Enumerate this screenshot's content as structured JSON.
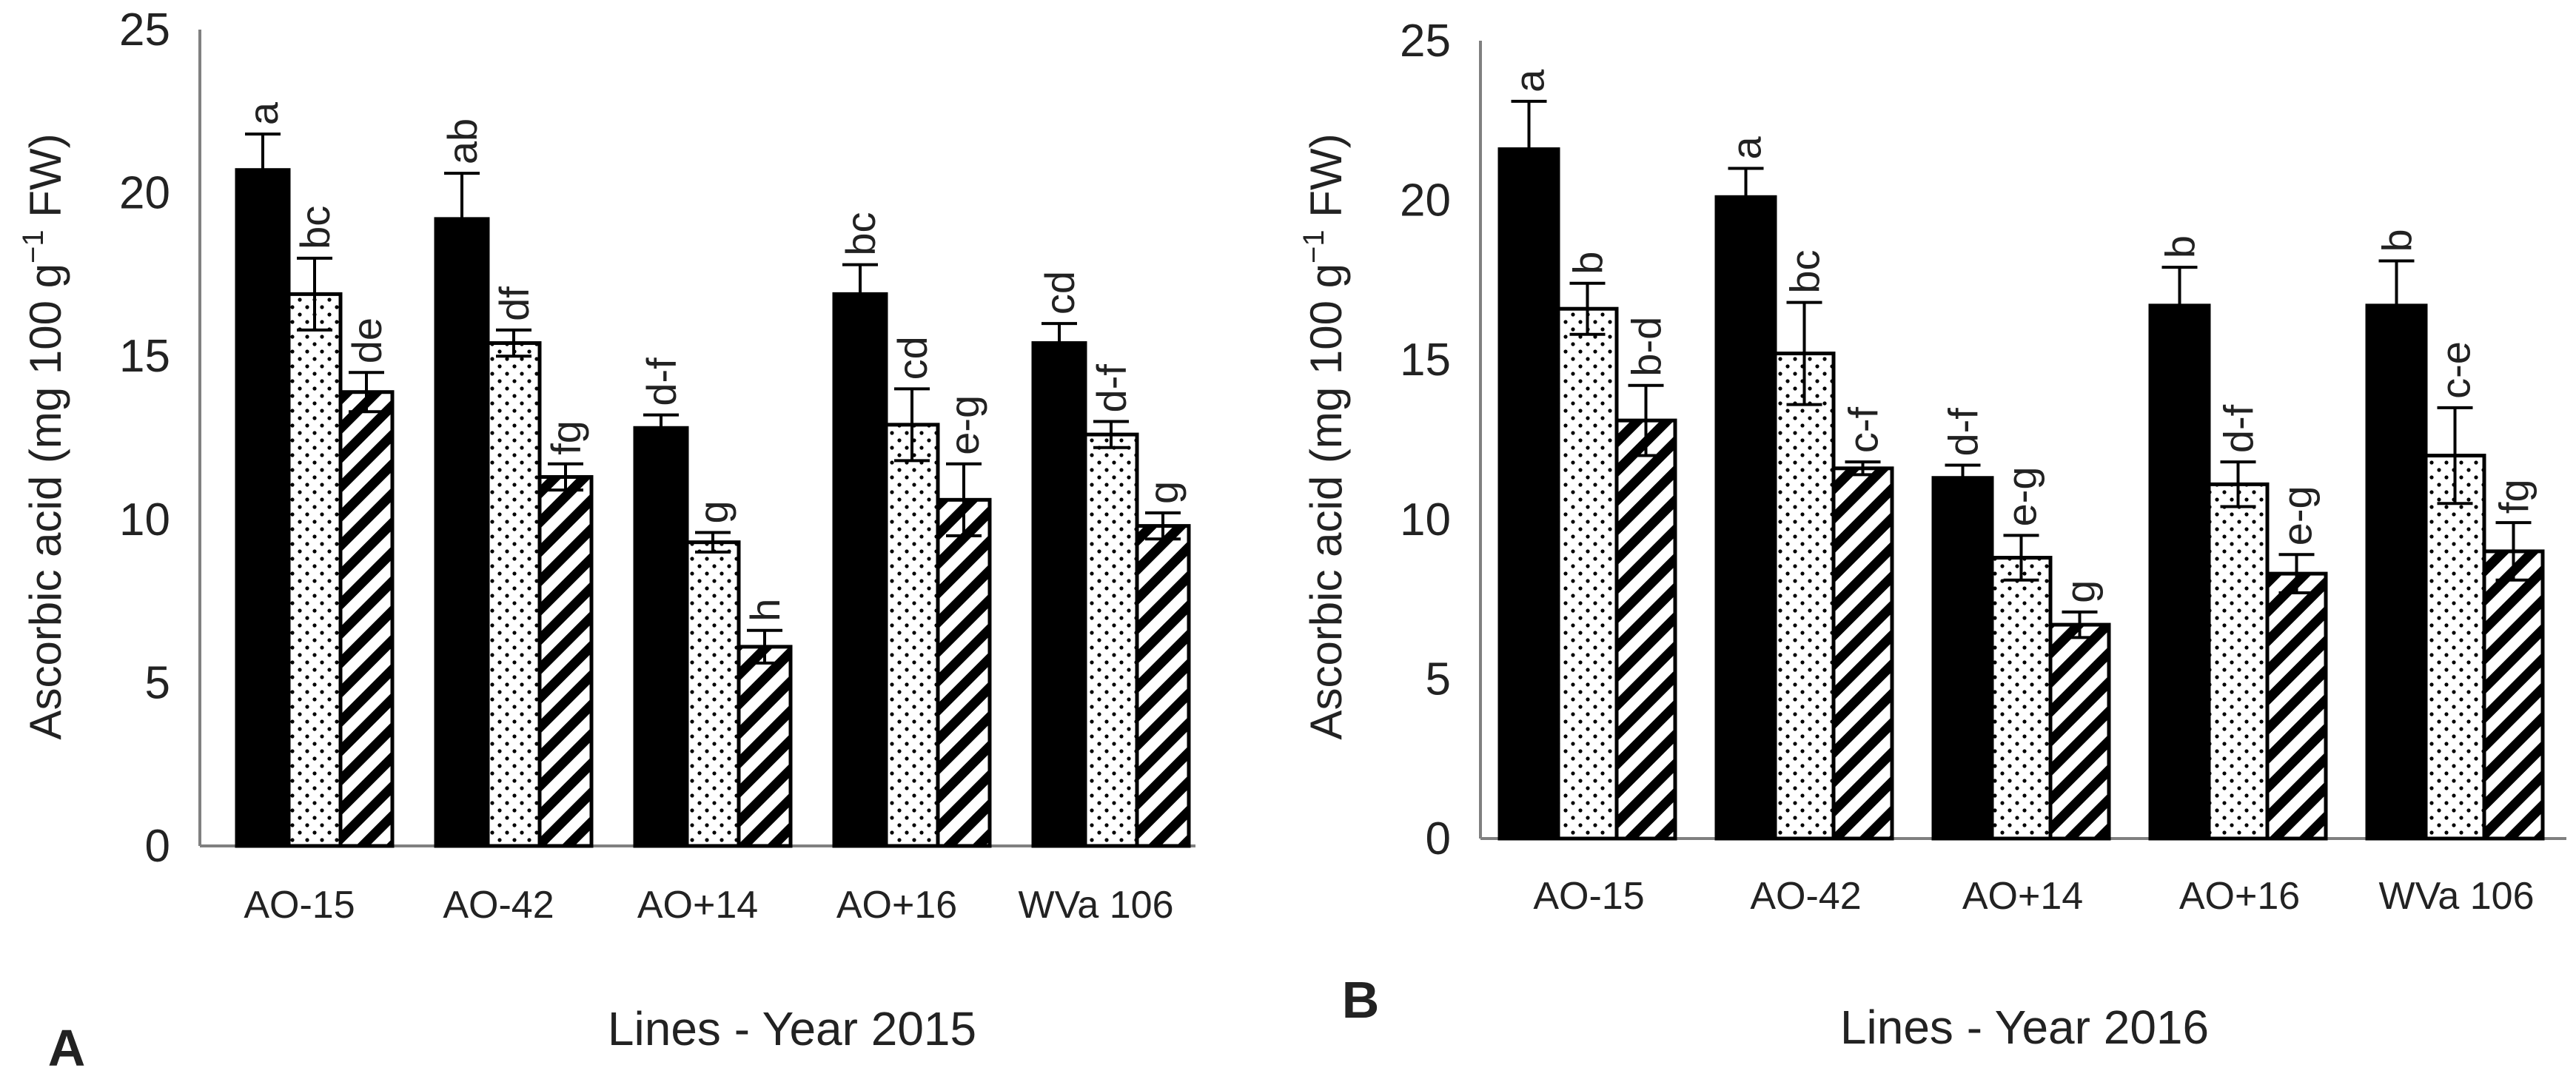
{
  "chart_data": [
    {
      "panel_label": "A",
      "type": "bar",
      "ylabel": "Ascorbic acid (mg 100 g",
      "ylabel_sup": "−1",
      "ylabel_tail": " FW)",
      "xlabel": "Lines - Year 2015",
      "ylim": [
        0,
        25
      ],
      "yticks": [
        "0",
        "5",
        "10",
        "15",
        "20",
        "25"
      ],
      "categories": [
        "AO-15",
        "AO-42",
        "AO+14",
        "AO+16",
        "WVa 106"
      ],
      "series": [
        {
          "name": "solid",
          "values": [
            20.7,
            19.2,
            12.8,
            16.9,
            15.4
          ],
          "errors": [
            1.1,
            1.4,
            0.4,
            0.9,
            0.6
          ],
          "letters": [
            "a",
            "ab",
            "d-f",
            "bc",
            "cd"
          ]
        },
        {
          "name": "dotted",
          "values": [
            16.9,
            15.4,
            9.3,
            12.9,
            12.6
          ],
          "errors": [
            1.1,
            0.4,
            0.3,
            1.1,
            0.4
          ],
          "letters": [
            "bc",
            "df",
            "g",
            "cd",
            "d-f"
          ]
        },
        {
          "name": "striped",
          "values": [
            13.9,
            11.3,
            6.1,
            10.6,
            9.8
          ],
          "errors": [
            0.6,
            0.4,
            0.5,
            1.1,
            0.4
          ],
          "letters": [
            "de",
            "fg",
            "h",
            "e-g",
            "g"
          ]
        }
      ]
    },
    {
      "panel_label": "B",
      "type": "bar",
      "ylabel": "Ascorbic acid (mg 100 g",
      "ylabel_sup": "−1",
      "ylabel_tail": " FW)",
      "xlabel": "Lines - Year 2016",
      "ylim": [
        0,
        25
      ],
      "yticks": [
        "0",
        "5",
        "10",
        "15",
        "20",
        "25"
      ],
      "categories": [
        "AO-15",
        "AO-42",
        "AO+14",
        "AO+16",
        "WVa 106"
      ],
      "series": [
        {
          "name": "solid",
          "values": [
            21.6,
            20.1,
            11.3,
            16.7,
            16.7
          ],
          "errors": [
            1.5,
            0.9,
            0.4,
            1.2,
            1.4
          ],
          "letters": [
            "a",
            "a",
            "d-f",
            "b",
            "b"
          ]
        },
        {
          "name": "dotted",
          "values": [
            16.6,
            15.2,
            8.8,
            11.1,
            12.0
          ],
          "errors": [
            0.8,
            1.6,
            0.7,
            0.7,
            1.5
          ],
          "letters": [
            "b",
            "bc",
            "e-g",
            "d-f",
            "c-e"
          ]
        },
        {
          "name": "striped",
          "values": [
            13.1,
            11.6,
            6.7,
            8.3,
            9.0
          ],
          "errors": [
            1.1,
            0.2,
            0.4,
            0.6,
            0.9
          ],
          "letters": [
            "b-d",
            "c-f",
            "g",
            "e-g",
            "fg"
          ]
        }
      ]
    }
  ]
}
